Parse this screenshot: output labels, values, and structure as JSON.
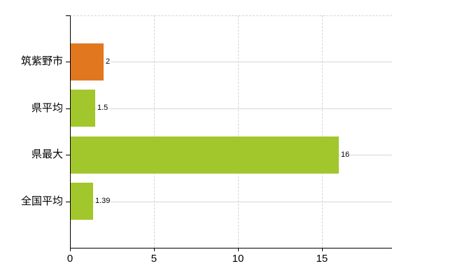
{
  "chart_data": {
    "type": "bar",
    "orientation": "horizontal",
    "title": "",
    "categories": [
      "筑紫野市",
      "県平均",
      "県最大",
      "全国平均"
    ],
    "values": [
      2,
      1.5,
      16,
      1.39
    ],
    "value_labels": [
      "2",
      "1.5",
      "16",
      "1.39"
    ],
    "bar_colors": [
      "#e1771f",
      "#a2c72c",
      "#a2c72c",
      "#a2c72c"
    ],
    "x_axis": {
      "min": 0,
      "max": 19.17,
      "ticks": [
        0,
        5,
        10,
        15
      ],
      "tick_labels": [
        "0",
        "5",
        "10",
        "15"
      ]
    },
    "grid": true,
    "legend": false,
    "colors": {
      "highlight_bar": "#e1771f",
      "default_bar": "#a2c72c",
      "gridline": "#d4d4d4",
      "row_line": "#d7d7d7",
      "axis": "#000000",
      "background": "#ffffff",
      "text": "#000000"
    }
  }
}
